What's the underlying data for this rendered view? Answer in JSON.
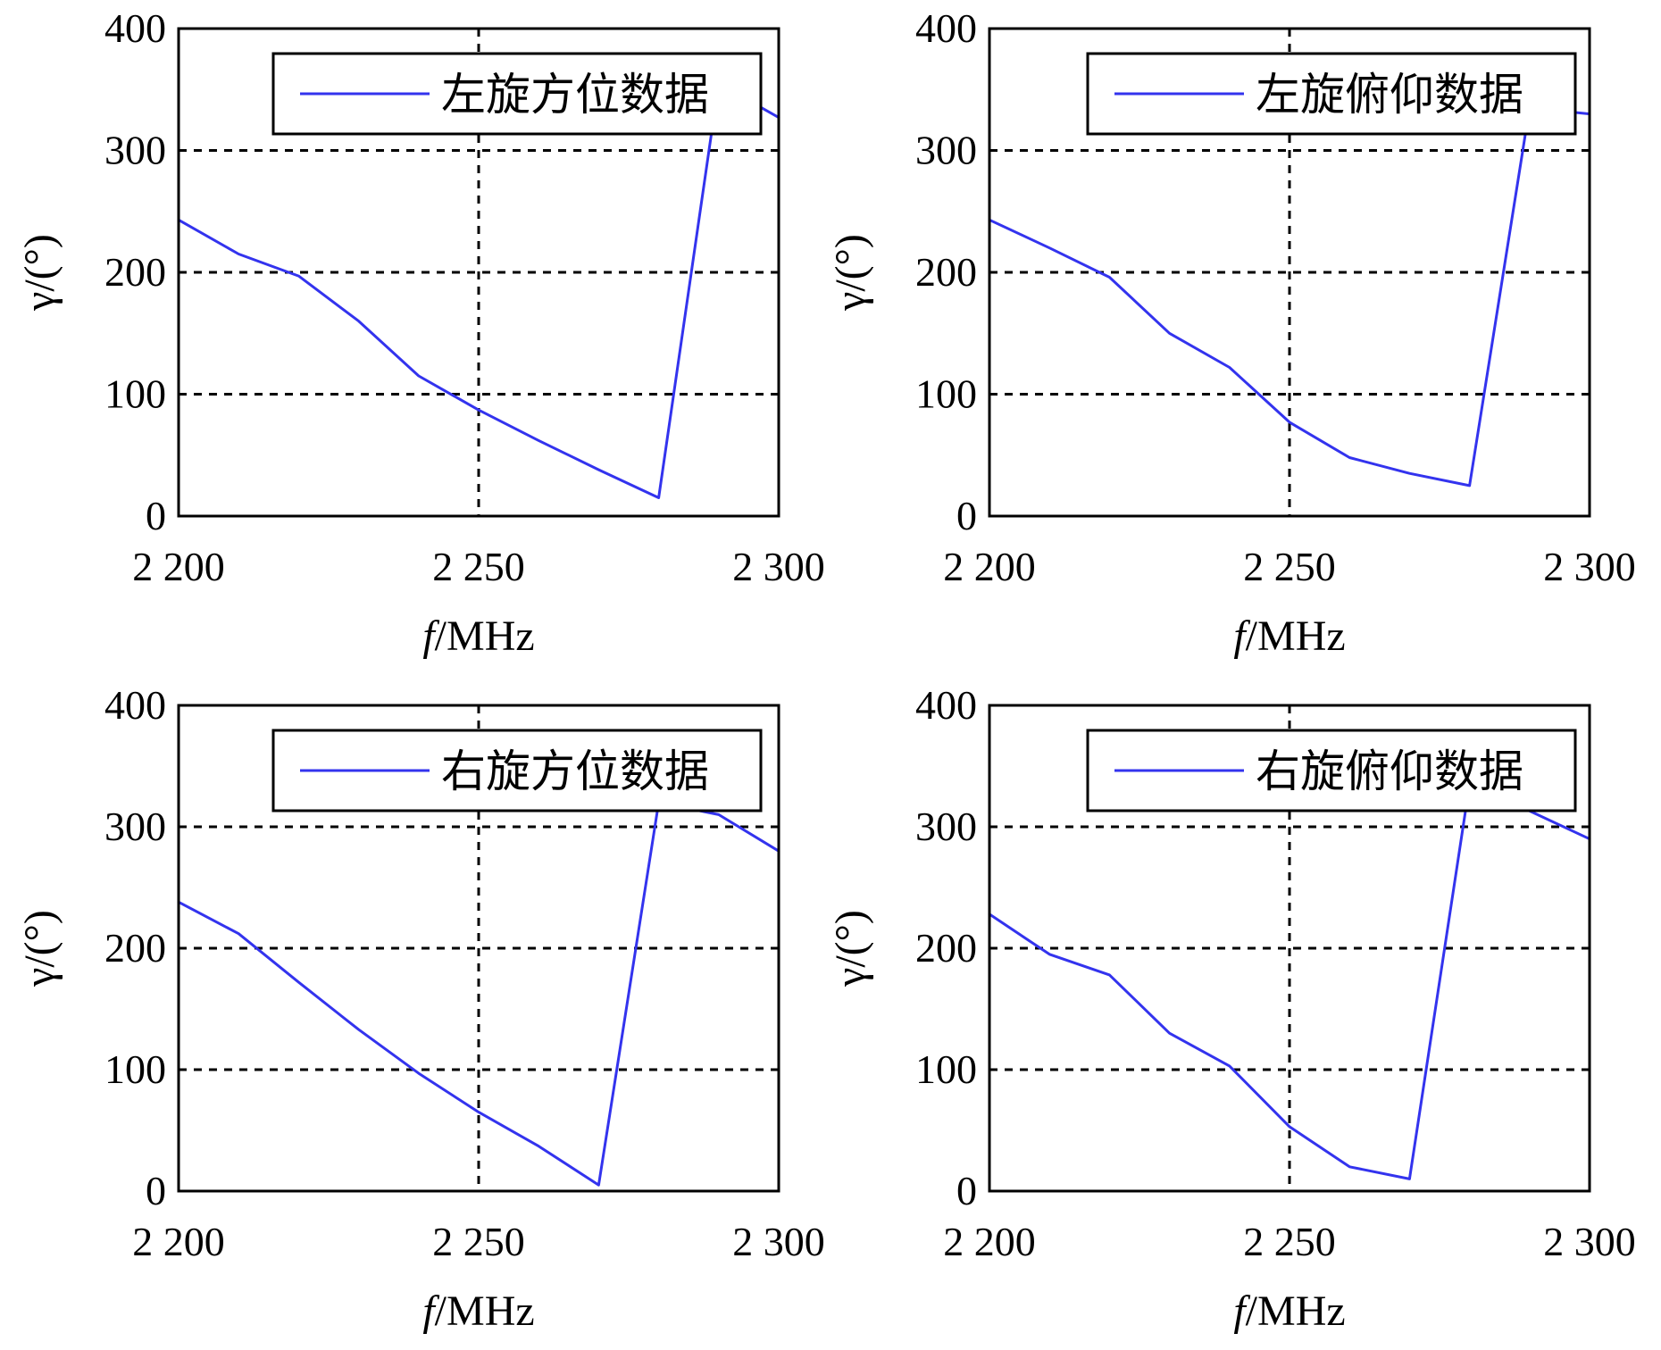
{
  "chart_data": [
    {
      "type": "line",
      "title": "",
      "xlabel": "f/MHz",
      "xlabel_italic": "f",
      "xlabel_unit": "/MHz",
      "ylabel": "γ/(°)",
      "xlim": [
        2200,
        2300
      ],
      "ylim": [
        0,
        400
      ],
      "xticks": [
        2200,
        2250,
        2300
      ],
      "xtick_labels": [
        "2 200",
        "2 250",
        "2 300"
      ],
      "yticks": [
        0,
        100,
        200,
        300,
        400
      ],
      "ytick_labels": [
        "0",
        "100",
        "200",
        "300",
        "400"
      ],
      "grid": true,
      "legend_position": "top-right",
      "series": [
        {
          "name": "左旋方位数据",
          "color": "#3333ee",
          "x": [
            2200,
            2210,
            2220,
            2230,
            2240,
            2250,
            2260,
            2270,
            2280,
            2290,
            2300
          ],
          "y": [
            243,
            215,
            197,
            160,
            115,
            87,
            62,
            38,
            15,
            355,
            327
          ]
        }
      ]
    },
    {
      "type": "line",
      "title": "",
      "xlabel": "f/MHz",
      "xlabel_italic": "f",
      "xlabel_unit": "/MHz",
      "ylabel": "γ/(°)",
      "xlim": [
        2200,
        2300
      ],
      "ylim": [
        0,
        400
      ],
      "xticks": [
        2200,
        2250,
        2300
      ],
      "xtick_labels": [
        "2 200",
        "2 250",
        "2 300"
      ],
      "yticks": [
        0,
        100,
        200,
        300,
        400
      ],
      "ytick_labels": [
        "0",
        "100",
        "200",
        "300",
        "400"
      ],
      "grid": true,
      "legend_position": "top-right",
      "series": [
        {
          "name": "左旋俯仰数据",
          "color": "#3333ee",
          "x": [
            2200,
            2210,
            2220,
            2230,
            2240,
            2250,
            2260,
            2270,
            2280,
            2290,
            2300
          ],
          "y": [
            243,
            220,
            196,
            150,
            122,
            77,
            48,
            35,
            25,
            335,
            330
          ]
        }
      ]
    },
    {
      "type": "line",
      "title": "",
      "xlabel": "f/MHz",
      "xlabel_italic": "f",
      "xlabel_unit": "/MHz",
      "ylabel": "γ/(°)",
      "xlim": [
        2200,
        2300
      ],
      "ylim": [
        0,
        400
      ],
      "xticks": [
        2200,
        2250,
        2300
      ],
      "xtick_labels": [
        "2 200",
        "2 250",
        "2 300"
      ],
      "yticks": [
        0,
        100,
        200,
        300,
        400
      ],
      "ytick_labels": [
        "0",
        "100",
        "200",
        "300",
        "400"
      ],
      "grid": true,
      "legend_position": "top-right",
      "series": [
        {
          "name": "右旋方位数据",
          "color": "#3333ee",
          "x": [
            2200,
            2210,
            2220,
            2230,
            2240,
            2250,
            2260,
            2270,
            2280,
            2290,
            2300
          ],
          "y": [
            238,
            212,
            172,
            133,
            97,
            65,
            37,
            5,
            320,
            310,
            280
          ]
        }
      ]
    },
    {
      "type": "line",
      "title": "",
      "xlabel": "f/MHz",
      "xlabel_italic": "f",
      "xlabel_unit": "/MHz",
      "ylabel": "γ/(°)",
      "xlim": [
        2200,
        2300
      ],
      "ylim": [
        0,
        400
      ],
      "xticks": [
        2200,
        2250,
        2300
      ],
      "xtick_labels": [
        "2 200",
        "2 250",
        "2 300"
      ],
      "yticks": [
        0,
        100,
        200,
        300,
        400
      ],
      "ytick_labels": [
        "0",
        "100",
        "200",
        "300",
        "400"
      ],
      "grid": true,
      "legend_position": "top-right",
      "series": [
        {
          "name": "右旋俯仰数据",
          "color": "#3333ee",
          "x": [
            2200,
            2210,
            2220,
            2230,
            2240,
            2250,
            2260,
            2270,
            2280,
            2290,
            2300
          ],
          "y": [
            228,
            195,
            178,
            130,
            103,
            53,
            20,
            10,
            335,
            313,
            290
          ]
        }
      ]
    }
  ]
}
